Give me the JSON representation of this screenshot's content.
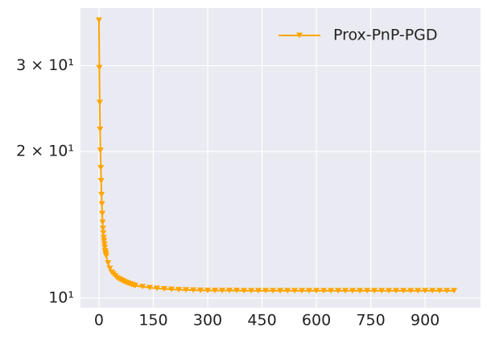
{
  "chart_data": {
    "type": "line",
    "yscale": "log",
    "grid": true,
    "legend": "upper right",
    "xlim": [
      -51,
      1053
    ],
    "xticks": [
      0,
      150,
      300,
      450,
      600,
      750,
      900
    ],
    "ylim": [
      9.55,
      39.4
    ],
    "yticks": [
      {
        "value": 10,
        "label": "10¹"
      },
      {
        "value": 20,
        "label": "2 × 10¹"
      },
      {
        "value": 30,
        "label": "3 × 10¹"
      }
    ],
    "x": [
      0,
      1,
      2,
      3,
      4,
      5,
      6,
      7,
      8,
      9,
      10,
      11,
      12,
      13,
      14,
      15,
      16,
      17,
      18,
      19,
      20,
      25,
      30,
      35,
      40,
      45,
      50,
      55,
      60,
      65,
      70,
      75,
      80,
      85,
      90,
      95,
      100,
      120,
      140,
      160,
      180,
      200,
      220,
      240,
      260,
      280,
      300,
      320,
      340,
      360,
      380,
      400,
      420,
      440,
      460,
      480,
      500,
      520,
      540,
      560,
      580,
      600,
      620,
      640,
      660,
      680,
      700,
      720,
      740,
      760,
      780,
      800,
      820,
      840,
      860,
      880,
      900,
      920,
      940,
      960,
      980
    ],
    "series": [
      {
        "name": "Prox-PnP-PGD",
        "color": "#ffa500",
        "marker": "v",
        "values": [
          37.2,
          29.7,
          25.2,
          22.2,
          20.1,
          18.5,
          17.4,
          16.3,
          15.6,
          14.9,
          14.3,
          13.9,
          13.6,
          13.3,
          13.1,
          12.9,
          12.7,
          12.5,
          12.4,
          12.3,
          12.2,
          11.8,
          11.5,
          11.3,
          11.2,
          11.1,
          11.0,
          10.95,
          10.9,
          10.85,
          10.8,
          10.76,
          10.72,
          10.69,
          10.66,
          10.63,
          10.6,
          10.55,
          10.5,
          10.47,
          10.44,
          10.42,
          10.4,
          10.39,
          10.38,
          10.37,
          10.36,
          10.36,
          10.36,
          10.36,
          10.36,
          10.35,
          10.35,
          10.35,
          10.35,
          10.35,
          10.35,
          10.35,
          10.35,
          10.35,
          10.35,
          10.35,
          10.35,
          10.35,
          10.35,
          10.35,
          10.35,
          10.35,
          10.35,
          10.35,
          10.35,
          10.35,
          10.35,
          10.35,
          10.35,
          10.35,
          10.35,
          10.35,
          10.35,
          10.35,
          10.35
        ]
      }
    ]
  }
}
